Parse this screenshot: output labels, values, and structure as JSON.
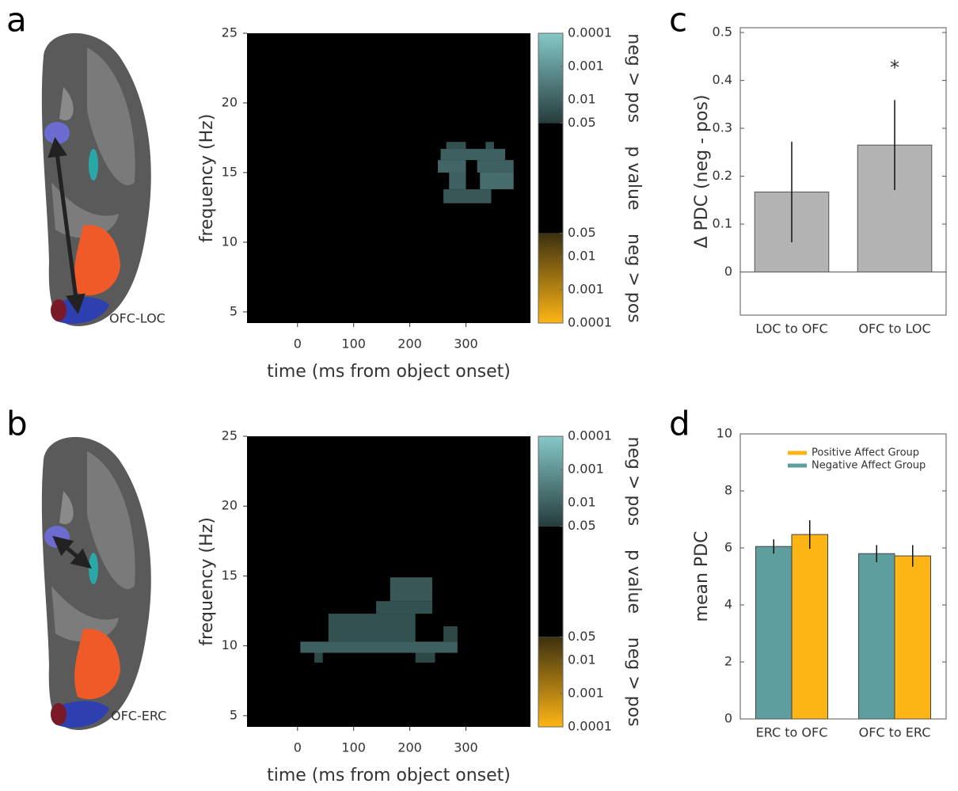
{
  "panel_labels": [
    "a",
    "b",
    "c",
    "d"
  ],
  "brain_labels": [
    "OFC-LOC",
    "OFC-ERC"
  ],
  "chart_data": [
    {
      "type": "heatmap",
      "xlabel": "time (ms from object onset)",
      "ylabel": "frequency (Hz)",
      "xlim": [
        -90,
        415
      ],
      "xticks": [
        0,
        100,
        200,
        300
      ],
      "ylim": [
        4.2,
        25
      ],
      "yticks": [
        5,
        10,
        15,
        20,
        25
      ],
      "background": "#000000",
      "cells": [
        {
          "x": [
            265,
            300
          ],
          "y": [
            16.7,
            17.2
          ],
          "p": 0.02
        },
        {
          "x": [
            335,
            350
          ],
          "y": [
            16.7,
            17.2
          ],
          "p": 0.02
        },
        {
          "x": [
            255,
            370
          ],
          "y": [
            15.9,
            16.7
          ],
          "p": 0.01
        },
        {
          "x": [
            250,
            300
          ],
          "y": [
            15.0,
            15.9
          ],
          "p": 0.008
        },
        {
          "x": [
            320,
            385
          ],
          "y": [
            15.0,
            15.9
          ],
          "p": 0.01
        },
        {
          "x": [
            270,
            300
          ],
          "y": [
            13.8,
            15.0
          ],
          "p": 0.01
        },
        {
          "x": [
            325,
            385
          ],
          "y": [
            13.8,
            15.0
          ],
          "p": 0.006
        },
        {
          "x": [
            260,
            345
          ],
          "y": [
            12.8,
            13.8
          ],
          "p": 0.015
        }
      ],
      "colorbar": {
        "title": "p value",
        "top_label": "neg > pos",
        "bottom_label": "neg > pos",
        "top_ticks": [
          0.0001,
          0.001,
          0.01,
          0.05
        ],
        "bottom_ticks": [
          0.05,
          0.01,
          0.001,
          0.0001
        ],
        "pos_colors": [
          "#86c8c8",
          "#263c3c"
        ],
        "neg_colors": [
          "#3c3010",
          "#fdb515"
        ]
      }
    },
    {
      "type": "heatmap",
      "xlabel": "time (ms from object onset)",
      "ylabel": "frequency (Hz)",
      "xlim": [
        -90,
        415
      ],
      "xticks": [
        0,
        100,
        200,
        300
      ],
      "ylim": [
        4.2,
        25
      ],
      "yticks": [
        5,
        10,
        15,
        20,
        25
      ],
      "background": "#000000",
      "cells": [
        {
          "x": [
            165,
            240
          ],
          "y": [
            13.2,
            14.9
          ],
          "p": 0.015
        },
        {
          "x": [
            140,
            240
          ],
          "y": [
            12.3,
            13.2
          ],
          "p": 0.02
        },
        {
          "x": [
            55,
            210
          ],
          "y": [
            10.3,
            12.3
          ],
          "p": 0.02
        },
        {
          "x": [
            5,
            285
          ],
          "y": [
            9.5,
            10.3
          ],
          "p": 0.01
        },
        {
          "x": [
            260,
            285
          ],
          "y": [
            10.3,
            11.4
          ],
          "p": 0.03
        },
        {
          "x": [
            30,
            45
          ],
          "y": [
            8.8,
            9.5
          ],
          "p": 0.03
        },
        {
          "x": [
            210,
            245
          ],
          "y": [
            8.8,
            9.5
          ],
          "p": 0.03
        }
      ],
      "colorbar": {
        "title": "p value",
        "top_label": "neg > pos",
        "bottom_label": "neg > pos",
        "top_ticks": [
          0.0001,
          0.001,
          0.01,
          0.05
        ],
        "bottom_ticks": [
          0.05,
          0.01,
          0.001,
          0.0001
        ],
        "pos_colors": [
          "#86c8c8",
          "#263c3c"
        ],
        "neg_colors": [
          "#3c3010",
          "#fdb515"
        ]
      }
    },
    {
      "type": "bar",
      "ylabel": "Δ PDC (neg - pos)",
      "categories": [
        "LOC to OFC",
        "OFC to LOC"
      ],
      "values": [
        0.167,
        0.265
      ],
      "errors": [
        0.105,
        0.094
      ],
      "color": "#b3b3b3",
      "annotations": [
        {
          "text": "*",
          "category": 1,
          "y": 0.425
        }
      ],
      "ylim": [
        -0.09,
        0.51
      ],
      "yticks": [
        0,
        0.1,
        0.2,
        0.3,
        0.4,
        0.5
      ]
    },
    {
      "type": "grouped_bar",
      "ylabel": "mean PDC",
      "categories": [
        "ERC to OFC",
        "OFC to ERC"
      ],
      "series": [
        {
          "name": "Positive Affect Group",
          "color": "#fdb515",
          "values": [
            6.47,
            5.72
          ],
          "errors": [
            0.5,
            0.38
          ]
        },
        {
          "name": "Negative Affect Group",
          "color": "#5f9e9e",
          "values": [
            6.05,
            5.8
          ],
          "errors": [
            0.25,
            0.3
          ]
        }
      ],
      "legend": "upper right",
      "ylim": [
        0,
        10
      ],
      "yticks": [
        0,
        2,
        4,
        6,
        8,
        10
      ]
    }
  ]
}
